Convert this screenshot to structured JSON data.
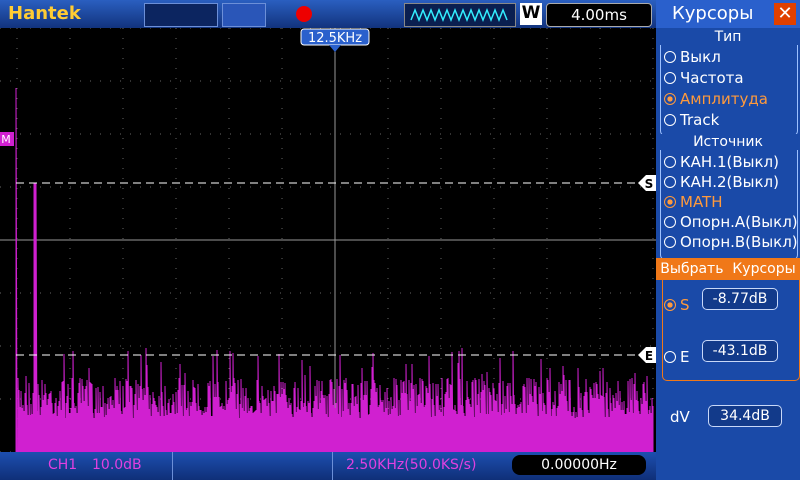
{
  "header": {
    "brand": "Hantek",
    "mode": "W",
    "timebase": "4.00ms"
  },
  "screen": {
    "trigger_marker": "12.5KHz",
    "markers": {
      "math": "M",
      "start": "S",
      "end": "E"
    }
  },
  "panel": {
    "title": "Курсоры",
    "type": {
      "label": "Тип",
      "options": [
        "Выкл",
        "Частота",
        "Амплитуда",
        "Track"
      ],
      "selected": 2
    },
    "source": {
      "label": "Источник",
      "options": [
        "КАН.1(Выкл)",
        "КАН.2(Выкл)",
        "MATH",
        "Опорн.А(Выкл)",
        "Опорн.В(Выкл)"
      ],
      "selected": 2
    },
    "select": "Выбрать  Курсоры",
    "cursors": [
      {
        "name": "S",
        "value": "-8.77dB",
        "selected": true
      },
      {
        "name": "E",
        "value": "-43.1dB",
        "selected": false
      }
    ],
    "delta": {
      "label": "dV",
      "value": "34.4dB"
    }
  },
  "footer": {
    "channel": "CH1",
    "scale": "10.0dB",
    "sample": "2.50KHz(50.0KS/s)",
    "frequency": "0.00000Hz"
  }
}
